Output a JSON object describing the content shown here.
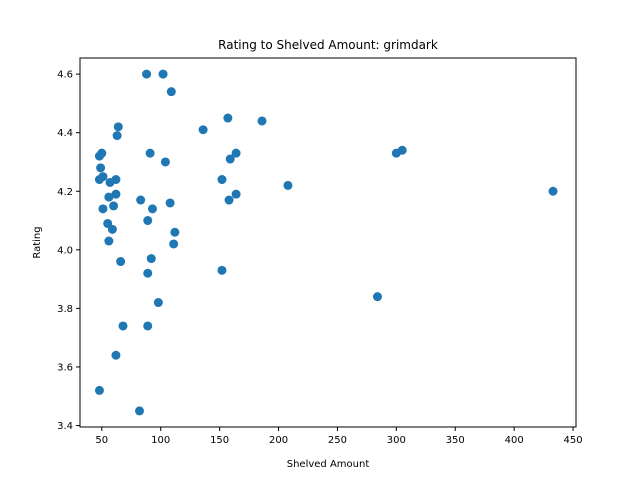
{
  "chart_data": {
    "type": "scatter",
    "title": "Rating to Shelved Amount: grimdark",
    "xlabel": "Shelved Amount",
    "ylabel": "Rating",
    "xlim": [
      31.5,
      452.5
    ],
    "ylim": [
      3.395,
      4.655
    ],
    "xticks": [
      50,
      100,
      150,
      200,
      250,
      300,
      350,
      400,
      450
    ],
    "xtick_labels": [
      "50",
      "100",
      "150",
      "200",
      "250",
      "300",
      "350",
      "400",
      "450"
    ],
    "yticks": [
      3.4,
      3.6,
      3.8,
      4.0,
      4.2,
      4.4,
      4.6
    ],
    "ytick_labels": [
      "3.4",
      "3.6",
      "3.8",
      "4.0",
      "4.2",
      "4.4",
      "4.6"
    ],
    "marker_color": "#1f77b4",
    "grid": false,
    "points": [
      {
        "x": 88,
        "y": 4.6
      },
      {
        "x": 102,
        "y": 4.6
      },
      {
        "x": 109,
        "y": 4.54
      },
      {
        "x": 157,
        "y": 4.45
      },
      {
        "x": 186,
        "y": 4.44
      },
      {
        "x": 64,
        "y": 4.42
      },
      {
        "x": 136,
        "y": 4.41
      },
      {
        "x": 63,
        "y": 4.39
      },
      {
        "x": 305,
        "y": 4.34
      },
      {
        "x": 50,
        "y": 4.33
      },
      {
        "x": 91,
        "y": 4.33
      },
      {
        "x": 164,
        "y": 4.33
      },
      {
        "x": 300,
        "y": 4.33
      },
      {
        "x": 48,
        "y": 4.32
      },
      {
        "x": 159,
        "y": 4.31
      },
      {
        "x": 104,
        "y": 4.3
      },
      {
        "x": 49,
        "y": 4.28
      },
      {
        "x": 51,
        "y": 4.25
      },
      {
        "x": 48,
        "y": 4.24
      },
      {
        "x": 62,
        "y": 4.24
      },
      {
        "x": 152,
        "y": 4.24
      },
      {
        "x": 57,
        "y": 4.23
      },
      {
        "x": 208,
        "y": 4.22
      },
      {
        "x": 433,
        "y": 4.2
      },
      {
        "x": 62,
        "y": 4.19
      },
      {
        "x": 164,
        "y": 4.19
      },
      {
        "x": 56,
        "y": 4.18
      },
      {
        "x": 83,
        "y": 4.17
      },
      {
        "x": 158,
        "y": 4.17
      },
      {
        "x": 108,
        "y": 4.16
      },
      {
        "x": 60,
        "y": 4.15
      },
      {
        "x": 51,
        "y": 4.14
      },
      {
        "x": 93,
        "y": 4.14
      },
      {
        "x": 89,
        "y": 4.1
      },
      {
        "x": 55,
        "y": 4.09
      },
      {
        "x": 59,
        "y": 4.07
      },
      {
        "x": 112,
        "y": 4.06
      },
      {
        "x": 56,
        "y": 4.03
      },
      {
        "x": 111,
        "y": 4.02
      },
      {
        "x": 92,
        "y": 3.97
      },
      {
        "x": 66,
        "y": 3.96
      },
      {
        "x": 152,
        "y": 3.93
      },
      {
        "x": 89,
        "y": 3.92
      },
      {
        "x": 284,
        "y": 3.84
      },
      {
        "x": 98,
        "y": 3.82
      },
      {
        "x": 68,
        "y": 3.74
      },
      {
        "x": 89,
        "y": 3.74
      },
      {
        "x": 62,
        "y": 3.64
      },
      {
        "x": 48,
        "y": 3.52
      },
      {
        "x": 82,
        "y": 3.45
      }
    ]
  }
}
